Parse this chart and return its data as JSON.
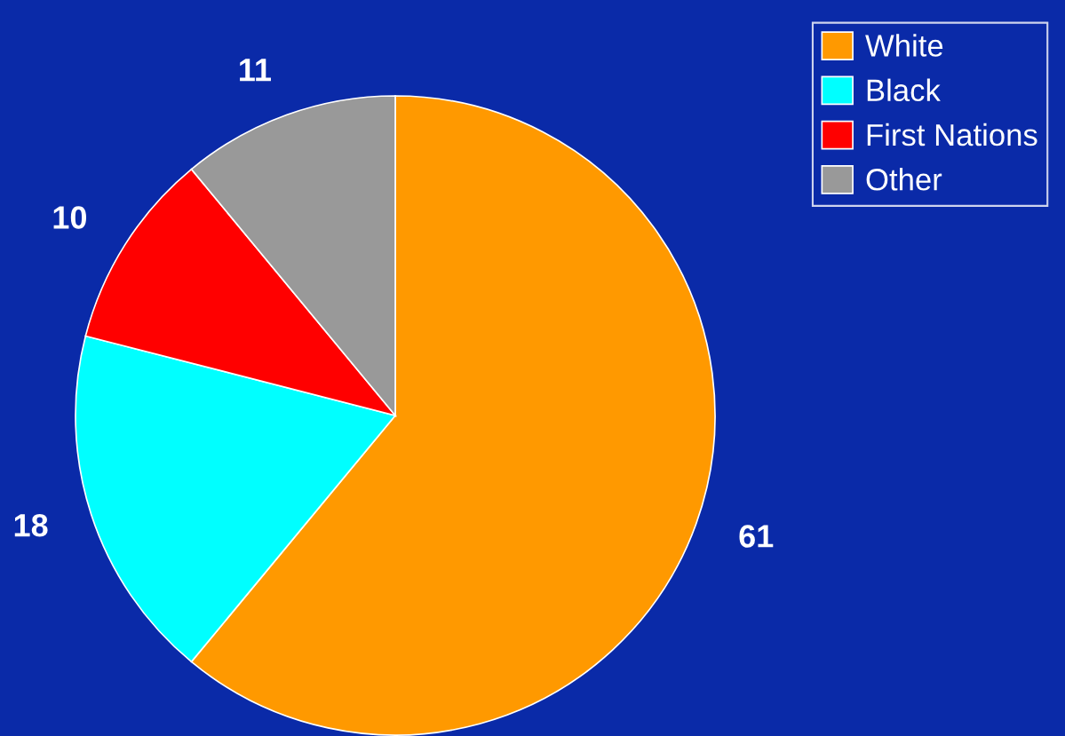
{
  "chart_data": {
    "type": "pie",
    "categories": [
      "White",
      "Black",
      "First Nations",
      "Other"
    ],
    "values": [
      61,
      18,
      10,
      11
    ],
    "colors": [
      "#ff9900",
      "#00ffff",
      "#ff0000",
      "#999999"
    ],
    "data_labels": true,
    "legend": "top right"
  }
}
